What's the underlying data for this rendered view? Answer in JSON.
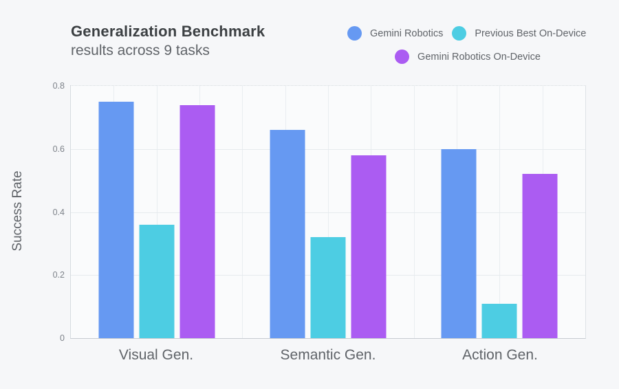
{
  "header": {
    "title": "Generalization Benchmark",
    "subtitle": "results across 9 tasks"
  },
  "legend": {
    "items": [
      {
        "label": "Gemini Robotics",
        "color": "#6699F2"
      },
      {
        "label": "Previous Best On-Device",
        "color": "#4DCDE3"
      },
      {
        "label": "Gemini Robotics On-Device",
        "color": "#AB5CF2"
      }
    ]
  },
  "chart_data": {
    "type": "bar",
    "title": "Generalization Benchmark results across 9 tasks",
    "categories": [
      "Visual Gen.",
      "Semantic Gen.",
      "Action Gen."
    ],
    "series": [
      {
        "name": "Gemini Robotics",
        "color": "#6699F2",
        "values": [
          0.75,
          0.66,
          0.6
        ]
      },
      {
        "name": "Previous Best On-Device",
        "color": "#4DCDE3",
        "values": [
          0.36,
          0.32,
          0.11
        ]
      },
      {
        "name": "Gemini Robotics On-Device",
        "color": "#AB5CF2",
        "values": [
          0.74,
          0.58,
          0.52
        ]
      }
    ],
    "xlabel": "",
    "ylabel": "Success Rate",
    "ylim": [
      0,
      0.8
    ],
    "yticks": [
      0,
      0.2,
      0.4,
      0.6,
      0.8
    ],
    "ytick_labels": [
      "0",
      "0.2",
      "0.4",
      "0.6",
      "0.8"
    ],
    "grid": true,
    "legend_position": "top-right"
  }
}
